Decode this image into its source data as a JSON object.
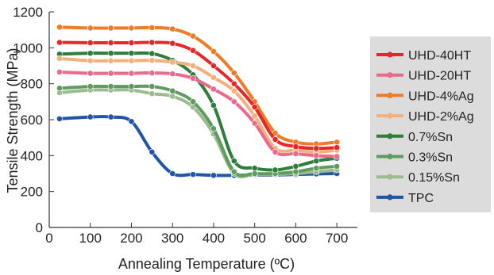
{
  "chart_data": {
    "type": "line",
    "xlabel": "Annealing Temperature (ºC)",
    "ylabel": "Tensile Strength (MPa)",
    "xlim": [
      0,
      750
    ],
    "ylim": [
      0,
      1200
    ],
    "xticks": [
      0,
      100,
      200,
      300,
      400,
      500,
      600,
      700
    ],
    "yticks": [
      0,
      200,
      400,
      600,
      800,
      1000,
      1200
    ],
    "grid": false,
    "legend_position": "right",
    "x": [
      25,
      100,
      150,
      200,
      250,
      300,
      350,
      400,
      450,
      500,
      550,
      600,
      650,
      700
    ],
    "series": [
      {
        "name": "UHD-40HT",
        "color": "#e8262a",
        "values": [
          1030,
          1028,
          1028,
          1028,
          1030,
          1025,
          985,
          900,
          800,
          670,
          490,
          450,
          440,
          445
        ]
      },
      {
        "name": "UHD-20HT",
        "color": "#e96a8a",
        "values": [
          865,
          858,
          858,
          858,
          860,
          855,
          830,
          770,
          700,
          580,
          420,
          410,
          400,
          395
        ]
      },
      {
        "name": "UHD-4%Ag",
        "color": "#f07a25",
        "values": [
          1115,
          1110,
          1110,
          1110,
          1112,
          1105,
          1065,
          980,
          860,
          700,
          525,
          475,
          465,
          475
        ]
      },
      {
        "name": "UHD-2%Ag",
        "color": "#f4b07a",
        "values": [
          940,
          928,
          928,
          928,
          930,
          920,
          900,
          835,
          760,
          620,
          440,
          430,
          420,
          430
        ]
      },
      {
        "name": "0.7%Sn",
        "color": "#2e7d3a",
        "values": [
          965,
          970,
          970,
          970,
          968,
          930,
          850,
          680,
          370,
          330,
          320,
          340,
          370,
          385
        ]
      },
      {
        "name": "0.3%Sn",
        "color": "#5e9b5e",
        "values": [
          775,
          785,
          785,
          785,
          785,
          760,
          700,
          550,
          310,
          300,
          300,
          310,
          330,
          340
        ]
      },
      {
        "name": "0.15%Sn",
        "color": "#9dbb8f",
        "values": [
          750,
          765,
          765,
          765,
          745,
          730,
          670,
          520,
          300,
          295,
          295,
          300,
          310,
          320
        ]
      },
      {
        "name": "TPC",
        "color": "#1f56a8",
        "values": [
          605,
          615,
          615,
          590,
          420,
          300,
          295,
          290,
          290,
          292,
          292,
          295,
          298,
          300
        ]
      }
    ]
  }
}
